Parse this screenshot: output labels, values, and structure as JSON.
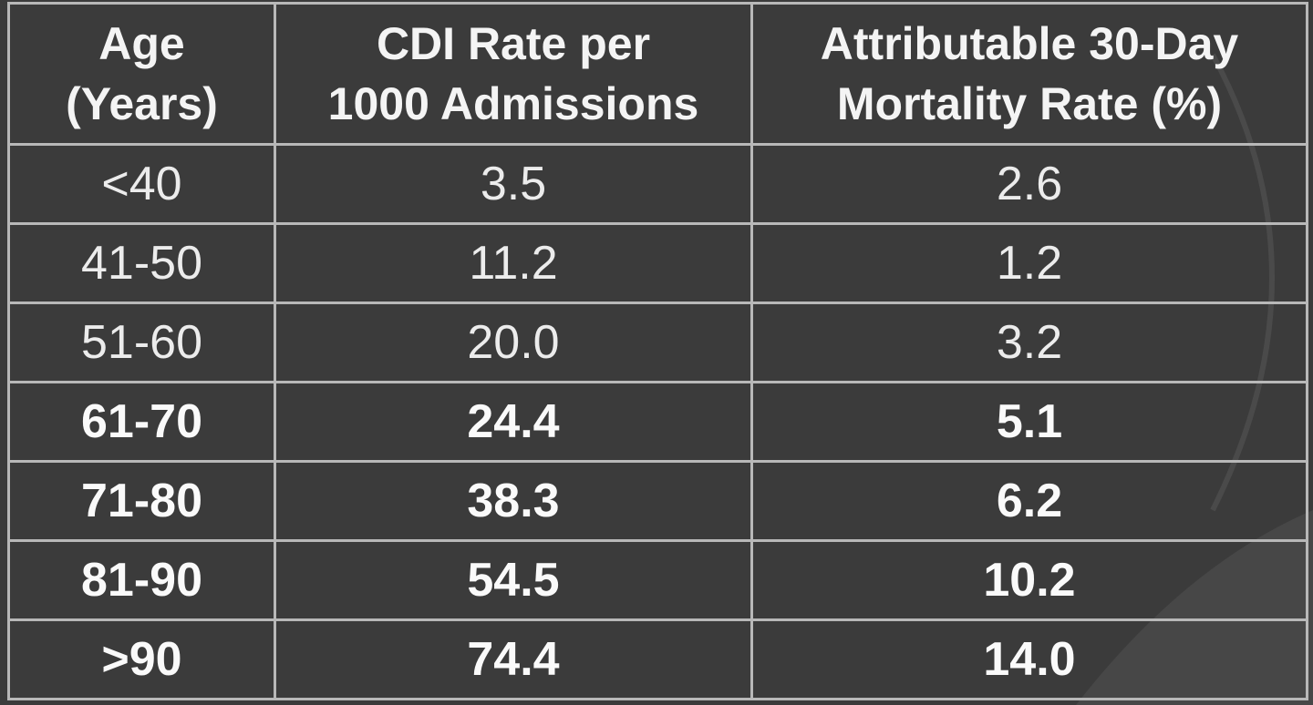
{
  "table": {
    "header": [
      [
        "Age",
        "(Years)"
      ],
      [
        "CDI Rate per",
        "1000 Admissions"
      ],
      [
        "Attributable 30-Day",
        "Mortality Rate (%)"
      ]
    ],
    "rows": [
      [
        "<40",
        "3.5",
        "2.6"
      ],
      [
        "41-50",
        "11.2",
        "1.2"
      ],
      [
        "51-60",
        "20.0",
        "3.2"
      ],
      [
        "61-70",
        "24.4",
        "5.1"
      ],
      [
        "71-80",
        "38.3",
        "6.2"
      ],
      [
        "81-90",
        "54.5",
        "10.2"
      ],
      [
        ">90",
        "74.4",
        "14.0"
      ]
    ]
  }
}
